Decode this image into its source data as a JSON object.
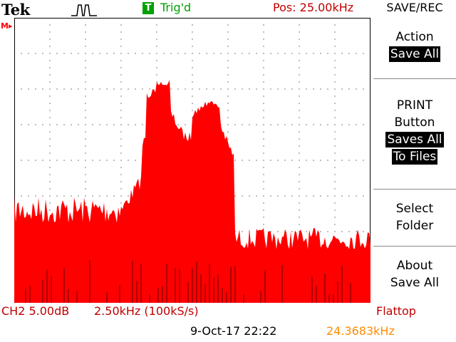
{
  "header": {
    "brand": "Tek",
    "acquisition_icon": "pulse-waveform-icon",
    "trigger_badge": "T",
    "trigger_status": "Trig'd",
    "position": "Pos: 25.00kHz",
    "menu_title": "SAVE/REC"
  },
  "display": {
    "channel_marker": "M",
    "trace_color": "#ff0000",
    "dark_trace_color": "#990000",
    "graticule_color": "#000000"
  },
  "menu": {
    "action_label": "Action",
    "action_value": "Save All",
    "print_line1": "PRINT",
    "print_line2": "Button",
    "print_value_line1": "Saves All",
    "print_value_line2": "To Files",
    "select_line1": "Select",
    "select_line2": "Folder",
    "about_line1": "About",
    "about_line2": "Save All"
  },
  "footer": {
    "channel_scale": "CH2 5.00dB",
    "span": "2.50kHz (100kS/s)",
    "window": "Flattop",
    "datetime": "9-Oct-17 22:22",
    "frequency_readout": "24.3683kHz"
  }
}
